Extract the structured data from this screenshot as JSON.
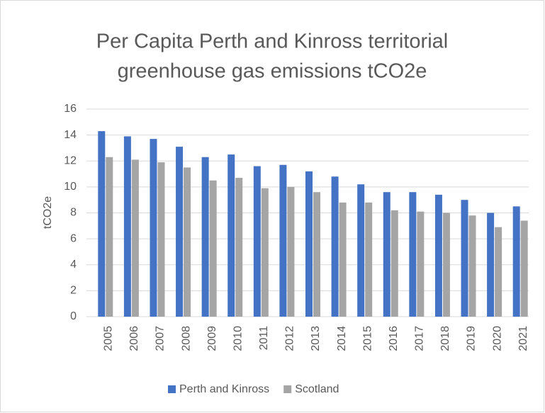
{
  "chart_data": {
    "type": "bar",
    "title": [
      "Per Capita Perth and Kinross territorial",
      "greenhouse gas emissions tCO2e"
    ],
    "ylabel": "tCO2e",
    "categories": [
      "2005",
      "2006",
      "2007",
      "2008",
      "2009",
      "2010",
      "2011",
      "2012",
      "2013",
      "2014",
      "2015",
      "2016",
      "2017",
      "2018",
      "2019",
      "2020",
      "2021"
    ],
    "series": [
      {
        "name": "Perth and Kinross",
        "color": "#4472c4",
        "values": [
          14.3,
          13.9,
          13.7,
          13.1,
          12.3,
          12.5,
          11.6,
          11.7,
          11.2,
          10.8,
          10.2,
          9.6,
          9.6,
          9.4,
          9.0,
          8.0,
          8.5
        ]
      },
      {
        "name": "Scotland",
        "color": "#a5a5a5",
        "values": [
          12.3,
          12.1,
          11.9,
          11.5,
          10.5,
          10.7,
          9.9,
          10.0,
          9.6,
          8.8,
          8.8,
          8.2,
          8.1,
          8.0,
          7.8,
          6.9,
          7.4
        ]
      }
    ],
    "ylim": [
      0,
      16
    ],
    "yticks": [
      0,
      2,
      4,
      6,
      8,
      10,
      12,
      14,
      16
    ],
    "grid": true,
    "legend": "bottom"
  }
}
